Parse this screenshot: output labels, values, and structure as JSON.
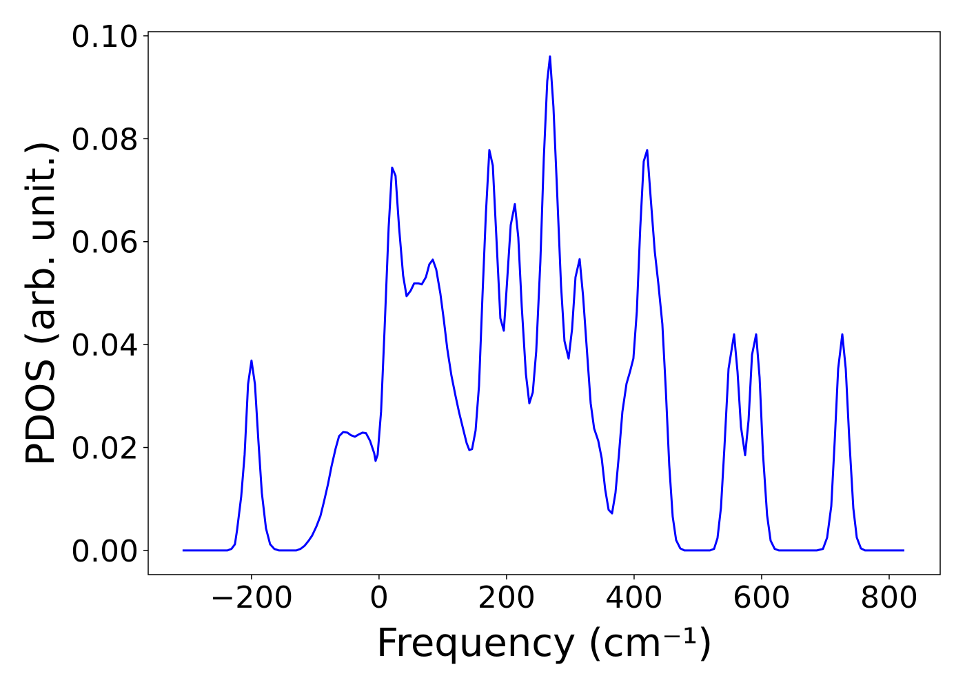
{
  "chart_data": {
    "type": "line",
    "xlabel": "Frequency (cm⁻¹)",
    "ylabel": "PDOS (arb. unit.)",
    "color": "#0000ff",
    "xlim": [
      -362,
      880
    ],
    "ylim": [
      -0.0047,
      0.1008
    ],
    "xticks": [
      {
        "value": -200,
        "label": "−200"
      },
      0,
      200,
      400,
      600,
      800
    ],
    "yticks": [
      {
        "value": 0,
        "label": "0.00"
      },
      {
        "value": 0.02,
        "label": "0.02"
      },
      {
        "value": 0.04,
        "label": "0.04"
      },
      {
        "value": 0.06,
        "label": "0.06"
      },
      {
        "value": 0.08,
        "label": "0.08"
      },
      {
        "value": 0.1,
        "label": "0.10"
      }
    ],
    "x": [
      -308.1,
      -237.8,
      -231.4,
      -226.0,
      -222.7,
      -216.2,
      -210.8,
      -205.4,
      -200.0,
      -194.6,
      -189.2,
      -183.8,
      -177.3,
      -170.8,
      -164.3,
      -156.8,
      -129.7,
      -123.2,
      -116.8,
      -110.3,
      -104.9,
      -98.4,
      -91.9,
      -86.5,
      -80.0,
      -74.6,
      -68.1,
      -62.7,
      -56.2,
      -49.7,
      -44.3,
      -37.8,
      -32.4,
      -25.9,
      -20.5,
      -14.1,
      -7.6,
      -5.4,
      -2.2,
      3.2,
      8.6,
      15.1,
      20.5,
      25.9,
      31.4,
      37.8,
      43.2,
      49.7,
      55.1,
      61.6,
      67.0,
      73.5,
      78.9,
      84.3,
      89.7,
      96.2,
      101.6,
      107.0,
      113.5,
      120.0,
      125.4,
      131.9,
      137.3,
      141.6,
      145.9,
      151.4,
      156.8,
      162.2,
      167.6,
      173.0,
      178.4,
      183.8,
      190.3,
      195.7,
      200.0,
      206.5,
      213.0,
      218.4,
      223.8,
      230.3,
      235.7,
      241.1,
      246.5,
      253.0,
      258.4,
      263.8,
      268.1,
      273.5,
      278.9,
      285.4,
      290.8,
      297.3,
      302.7,
      308.1,
      314.6,
      320.0,
      326.5,
      331.9,
      337.3,
      343.8,
      349.2,
      354.6,
      360.0,
      365.4,
      370.8,
      376.2,
      381.6,
      388.1,
      393.5,
      398.9,
      404.3,
      409.7,
      415.1,
      420.5,
      425.9,
      432.4,
      437.8,
      444.3,
      449.7,
      455.1,
      460.5,
      465.9,
      472.4,
      478.9,
      518.9,
      525.4,
      530.8,
      536.2,
      541.6,
      548.1,
      556.8,
      562.2,
      567.6,
      574.1,
      579.5,
      584.9,
      591.4,
      596.8,
      602.2,
      608.6,
      614.1,
      620.5,
      627.0,
      686.5,
      696.2,
      702.7,
      709.2,
      714.6,
      720.0,
      726.5,
      731.9,
      737.3,
      743.8,
      749.2,
      755.7,
      762.2,
      823.8
    ],
    "values": [
      0,
      0,
      0.0003,
      0.0012,
      0.0039,
      0.0104,
      0.0186,
      0.0323,
      0.0369,
      0.0323,
      0.0213,
      0.0112,
      0.0043,
      0.0012,
      0.0003,
      0,
      0,
      0.0003,
      0.0009,
      0.0019,
      0.0029,
      0.0046,
      0.0067,
      0.0094,
      0.0129,
      0.0163,
      0.0198,
      0.0222,
      0.023,
      0.0229,
      0.0224,
      0.0221,
      0.0225,
      0.0229,
      0.0228,
      0.0213,
      0.0189,
      0.0174,
      0.0186,
      0.027,
      0.0427,
      0.0628,
      0.0744,
      0.0728,
      0.0628,
      0.0534,
      0.0494,
      0.0505,
      0.0519,
      0.0519,
      0.0517,
      0.0531,
      0.0556,
      0.0565,
      0.0546,
      0.0499,
      0.0448,
      0.0392,
      0.034,
      0.03,
      0.0269,
      0.0236,
      0.0209,
      0.0195,
      0.0197,
      0.0233,
      0.032,
      0.0494,
      0.0655,
      0.0778,
      0.0748,
      0.0614,
      0.0451,
      0.0427,
      0.0507,
      0.0632,
      0.0673,
      0.0608,
      0.0474,
      0.0343,
      0.0286,
      0.0307,
      0.0387,
      0.0561,
      0.0762,
      0.0912,
      0.096,
      0.0862,
      0.0708,
      0.0515,
      0.0407,
      0.0373,
      0.043,
      0.0531,
      0.0566,
      0.0494,
      0.038,
      0.0286,
      0.0237,
      0.0213,
      0.0179,
      0.0119,
      0.0079,
      0.0072,
      0.0112,
      0.0186,
      0.0269,
      0.0324,
      0.0347,
      0.0373,
      0.0465,
      0.0628,
      0.0756,
      0.0778,
      0.0687,
      0.0581,
      0.0521,
      0.044,
      0.0313,
      0.0166,
      0.0066,
      0.002,
      0.0004,
      0,
      0,
      0.0003,
      0.0024,
      0.0083,
      0.0199,
      0.0353,
      0.042,
      0.0347,
      0.024,
      0.0185,
      0.0253,
      0.038,
      0.042,
      0.0336,
      0.0186,
      0.0068,
      0.0019,
      0.0003,
      0,
      0,
      0.0003,
      0.0025,
      0.0086,
      0.0213,
      0.0353,
      0.042,
      0.0353,
      0.022,
      0.0082,
      0.0025,
      0.0004,
      0,
      0
    ]
  }
}
